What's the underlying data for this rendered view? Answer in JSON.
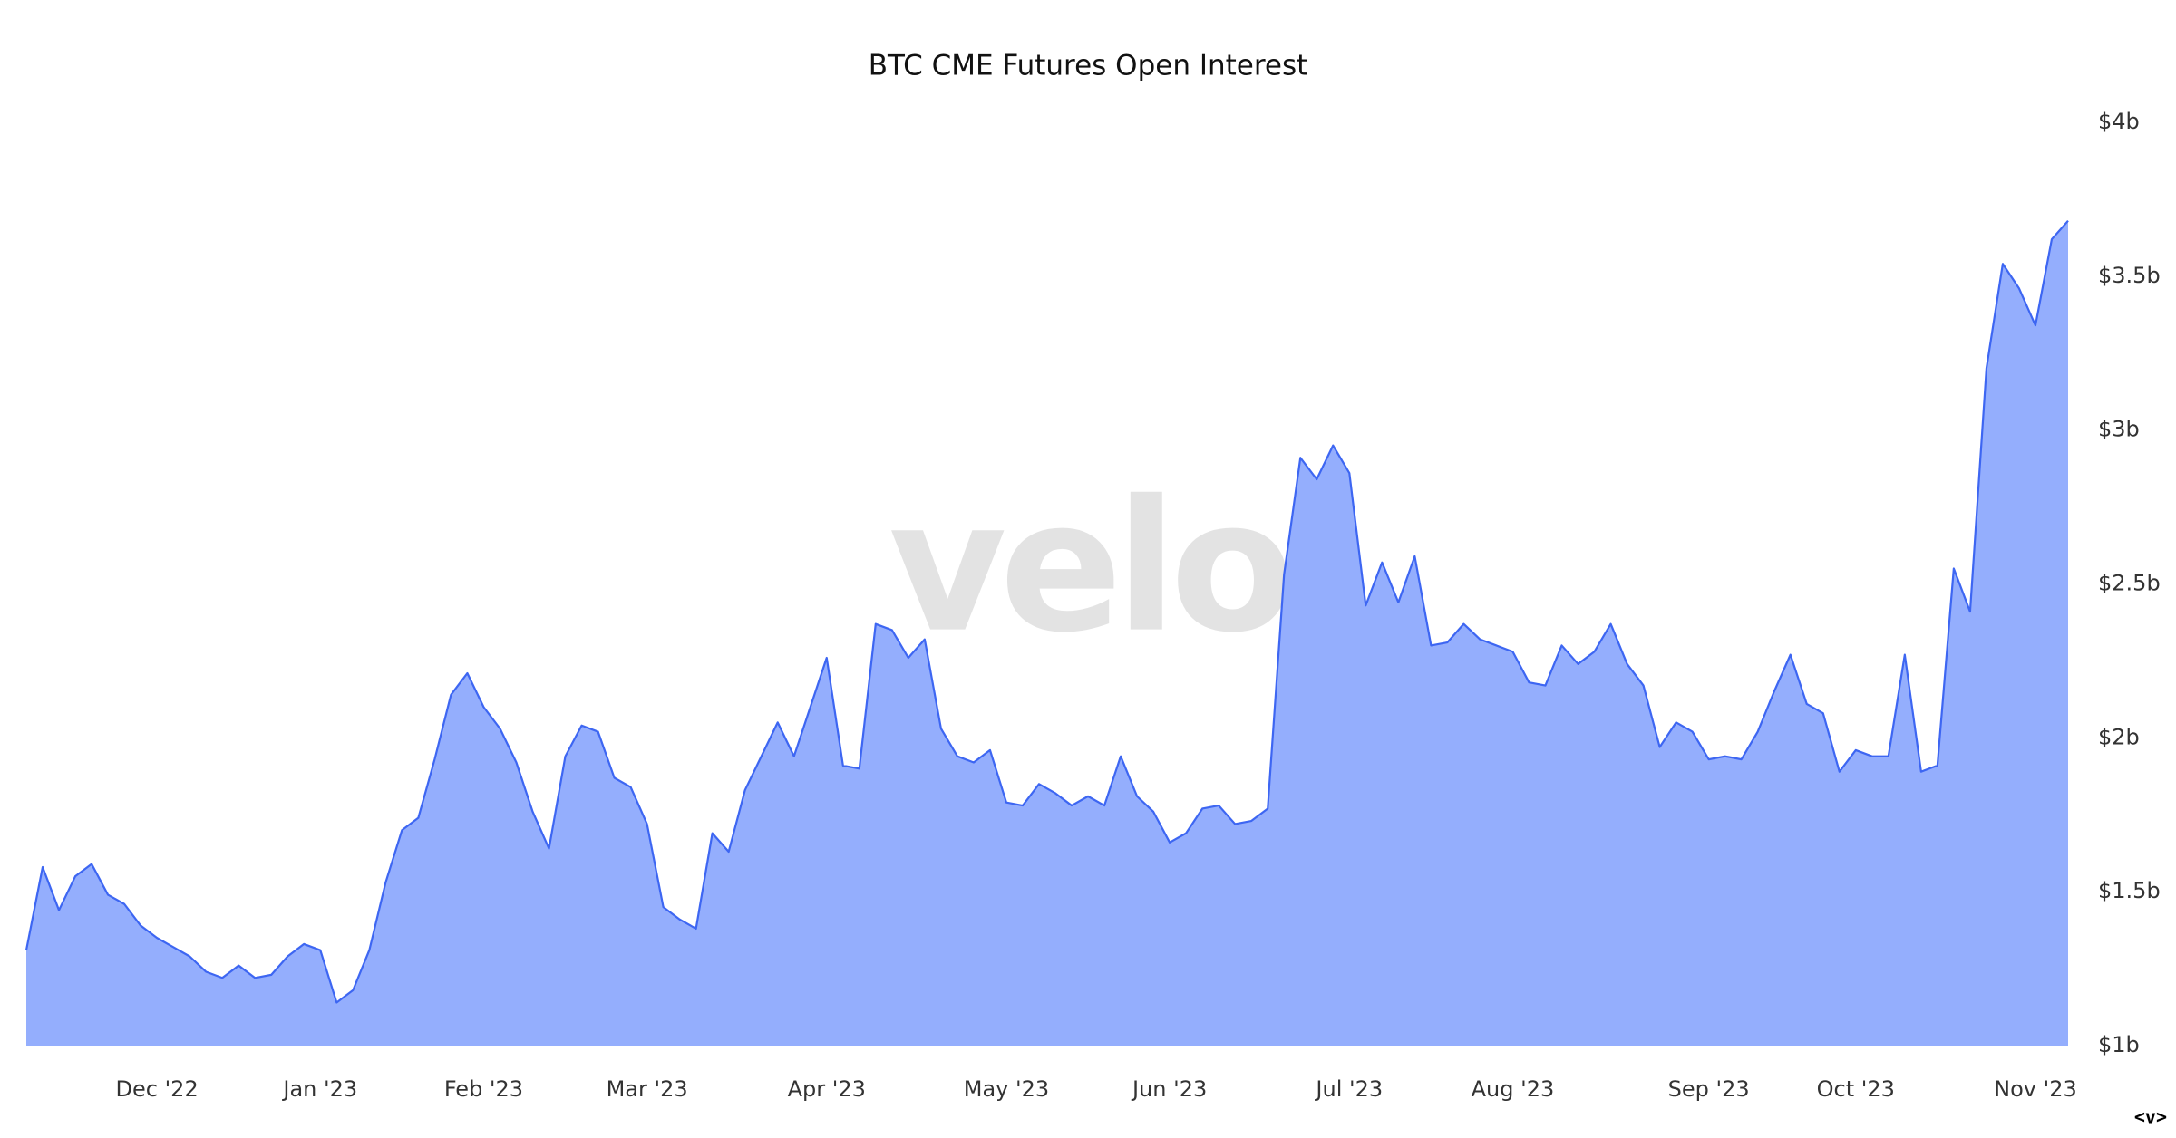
{
  "chart_data": {
    "type": "area",
    "title": "BTC CME Futures Open Interest",
    "watermark": "velo",
    "corner_label": "<v>",
    "color": "#3d66f2",
    "fill": "#94aefd",
    "categories": [
      null,
      null,
      null,
      null,
      null,
      null,
      null,
      null,
      "Dec '22",
      null,
      null,
      null,
      null,
      null,
      null,
      null,
      null,
      null,
      "Jan '23",
      null,
      null,
      null,
      null,
      null,
      null,
      null,
      null,
      null,
      "Feb '23",
      null,
      null,
      null,
      null,
      null,
      null,
      null,
      null,
      null,
      "Mar '23",
      null,
      null,
      null,
      null,
      null,
      null,
      null,
      null,
      null,
      null,
      "Apr '23",
      null,
      null,
      null,
      null,
      null,
      null,
      null,
      null,
      null,
      null,
      "May '23",
      null,
      null,
      null,
      null,
      null,
      null,
      null,
      null,
      null,
      "Jun '23",
      null,
      null,
      null,
      null,
      null,
      null,
      null,
      null,
      null,
      null,
      "Jul '23",
      null,
      null,
      null,
      null,
      null,
      null,
      null,
      null,
      null,
      "Aug '23",
      null,
      null,
      null,
      null,
      null,
      null,
      null,
      null,
      null,
      null,
      null,
      "Sep '23",
      null,
      null,
      null,
      null,
      null,
      null,
      null,
      null,
      "Oct '23",
      null,
      null,
      null,
      null,
      null,
      null,
      null,
      null,
      null,
      null,
      "Nov '23",
      null,
      null
    ],
    "values": [
      1.31,
      1.58,
      1.44,
      1.55,
      1.59,
      1.49,
      1.46,
      1.39,
      1.35,
      1.32,
      1.29,
      1.24,
      1.22,
      1.26,
      1.22,
      1.23,
      1.29,
      1.33,
      1.31,
      1.14,
      1.18,
      1.31,
      1.53,
      1.7,
      1.74,
      1.93,
      2.14,
      2.21,
      2.1,
      2.03,
      1.92,
      1.76,
      1.64,
      1.94,
      2.04,
      2.02,
      1.87,
      1.84,
      1.72,
      1.45,
      1.41,
      1.38,
      1.69,
      1.63,
      1.83,
      1.94,
      2.05,
      1.94,
      2.1,
      2.26,
      1.91,
      1.9,
      2.37,
      2.35,
      2.26,
      2.32,
      2.03,
      1.94,
      1.92,
      1.96,
      1.79,
      1.78,
      1.85,
      1.82,
      1.78,
      1.81,
      1.78,
      1.94,
      1.81,
      1.76,
      1.66,
      1.69,
      1.77,
      1.78,
      1.72,
      1.73,
      1.77,
      2.53,
      2.91,
      2.84,
      2.95,
      2.86,
      2.43,
      2.57,
      2.44,
      2.59,
      2.3,
      2.31,
      2.37,
      2.32,
      2.3,
      2.28,
      2.18,
      2.17,
      2.3,
      2.24,
      2.28,
      2.37,
      2.24,
      2.17,
      1.97,
      2.05,
      2.02,
      1.93,
      1.94,
      1.93,
      2.02,
      2.15,
      2.27,
      2.11,
      2.08,
      1.89,
      1.96,
      1.94,
      1.94,
      2.27,
      1.89,
      1.91,
      2.55,
      2.41,
      3.2,
      3.54,
      3.46,
      3.34,
      3.62,
      3.68
    ],
    "ylim": [
      1,
      4
    ],
    "yticks": [
      {
        "value": 1,
        "label": "$1b"
      },
      {
        "value": 1.5,
        "label": "$1.5b"
      },
      {
        "value": 2,
        "label": "$2b"
      },
      {
        "value": 2.5,
        "label": "$2.5b"
      },
      {
        "value": 3,
        "label": "$3b"
      },
      {
        "value": 3.5,
        "label": "$3.5b"
      },
      {
        "value": 4,
        "label": "$4b"
      }
    ],
    "y_axis_side": "right",
    "grid": false
  }
}
